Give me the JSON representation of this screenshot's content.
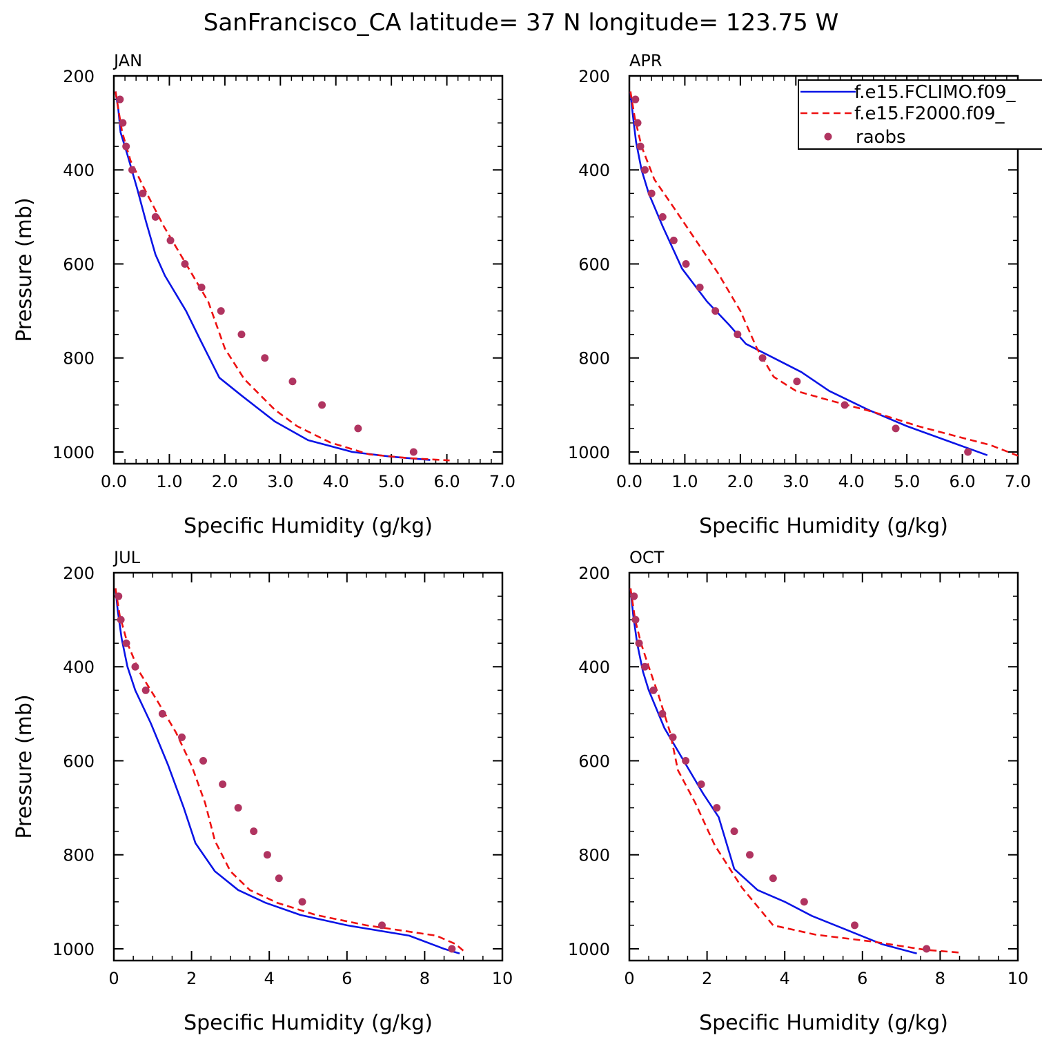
{
  "title": "SanFrancisco_CA  latitude= 37 N longitude= 123.75 W",
  "colors": {
    "fclimo": "#0a14e6",
    "f2000": "#ee1111",
    "raobs": "#b03460"
  },
  "legend": {
    "placement": "top-right of APR panel",
    "entries": [
      "f.e15.FCLIMO.f09_",
      "f.e15.F2000.f09_",
      "raobs"
    ]
  },
  "chart_data": [
    {
      "type": "line",
      "panel": "JAN",
      "xlabel": "Specific Humidity (g/kg)",
      "ylabel": "Pressure (mb)",
      "xlim": [
        0,
        7
      ],
      "ylim": [
        1025,
        200
      ],
      "y_inverted": true,
      "xticks": [
        "0.0",
        "1.0",
        "2.0",
        "3.0",
        "4.0",
        "5.0",
        "6.0",
        "7.0"
      ],
      "yticks": [
        "200",
        "400",
        "600",
        "800",
        "1000"
      ],
      "series": [
        {
          "name": "f.e15.FCLIMO.f09_",
          "style": "solid",
          "points": [
            [
              0.03,
              233
            ],
            [
              0.08,
              270
            ],
            [
              0.12,
              320
            ],
            [
              0.25,
              370
            ],
            [
              0.42,
              440
            ],
            [
              0.58,
              510
            ],
            [
              0.75,
              580
            ],
            [
              0.92,
              625
            ],
            [
              1.3,
              700
            ],
            [
              1.55,
              760
            ],
            [
              1.9,
              842
            ],
            [
              2.3,
              880
            ],
            [
              2.9,
              935
            ],
            [
              3.5,
              975
            ],
            [
              4.3,
              1000
            ],
            [
              5.0,
              1010
            ],
            [
              5.7,
              1017
            ]
          ]
        },
        {
          "name": "f.e15.F2000.f09_",
          "style": "dashed",
          "points": [
            [
              0.03,
              233
            ],
            [
              0.08,
              270
            ],
            [
              0.15,
              320
            ],
            [
              0.3,
              380
            ],
            [
              0.55,
              440
            ],
            [
              0.9,
              520
            ],
            [
              1.3,
              600
            ],
            [
              1.7,
              680
            ],
            [
              2.0,
              780
            ],
            [
              2.35,
              845
            ],
            [
              2.9,
              910
            ],
            [
              3.3,
              945
            ],
            [
              3.9,
              980
            ],
            [
              4.6,
              1005
            ],
            [
              5.3,
              1013
            ],
            [
              6.05,
              1018
            ]
          ]
        },
        {
          "name": "raobs",
          "style": "dots",
          "points": [
            [
              0.11,
              250
            ],
            [
              0.16,
              300
            ],
            [
              0.22,
              350
            ],
            [
              0.33,
              400
            ],
            [
              0.52,
              450
            ],
            [
              0.75,
              500
            ],
            [
              1.02,
              550
            ],
            [
              1.28,
              600
            ],
            [
              1.58,
              650
            ],
            [
              1.93,
              700
            ],
            [
              2.3,
              750
            ],
            [
              2.72,
              800
            ],
            [
              3.22,
              850
            ],
            [
              3.75,
              900
            ],
            [
              4.4,
              950
            ],
            [
              5.4,
              1000
            ]
          ]
        }
      ]
    },
    {
      "type": "line",
      "panel": "APR",
      "xlabel": "Specific Humidity (g/kg)",
      "ylabel": "",
      "xlim": [
        0,
        7
      ],
      "ylim": [
        1025,
        200
      ],
      "y_inverted": true,
      "xticks": [
        "0.0",
        "1.0",
        "2.0",
        "3.0",
        "4.0",
        "5.0",
        "6.0",
        "7.0"
      ],
      "yticks": [
        "200",
        "400",
        "600",
        "800",
        "1000"
      ],
      "series": [
        {
          "name": "f.e15.FCLIMO.f09_",
          "style": "solid",
          "points": [
            [
              0.02,
              233
            ],
            [
              0.06,
              280
            ],
            [
              0.12,
              340
            ],
            [
              0.22,
              400
            ],
            [
              0.35,
              450
            ],
            [
              0.6,
              520
            ],
            [
              0.95,
              610
            ],
            [
              1.4,
              680
            ],
            [
              1.8,
              730
            ],
            [
              2.1,
              770
            ],
            [
              2.6,
              800
            ],
            [
              3.1,
              830
            ],
            [
              3.6,
              870
            ],
            [
              4.3,
              910
            ],
            [
              5.0,
              945
            ],
            [
              5.7,
              975
            ],
            [
              6.45,
              1007
            ]
          ]
        },
        {
          "name": "f.e15.F2000.f09_",
          "style": "dashed",
          "points": [
            [
              0.02,
              233
            ],
            [
              0.1,
              290
            ],
            [
              0.22,
              350
            ],
            [
              0.45,
              420
            ],
            [
              0.8,
              480
            ],
            [
              1.2,
              550
            ],
            [
              1.6,
              620
            ],
            [
              2.0,
              700
            ],
            [
              2.3,
              780
            ],
            [
              2.6,
              840
            ],
            [
              3.0,
              870
            ],
            [
              3.6,
              890
            ],
            [
              4.4,
              915
            ],
            [
              5.2,
              945
            ],
            [
              6.0,
              970
            ],
            [
              6.5,
              985
            ],
            [
              7.0,
              1008
            ]
          ]
        },
        {
          "name": "raobs",
          "style": "dots",
          "points": [
            [
              0.11,
              250
            ],
            [
              0.15,
              300
            ],
            [
              0.2,
              350
            ],
            [
              0.28,
              400
            ],
            [
              0.4,
              450
            ],
            [
              0.6,
              500
            ],
            [
              0.8,
              550
            ],
            [
              1.02,
              600
            ],
            [
              1.27,
              650
            ],
            [
              1.55,
              700
            ],
            [
              1.95,
              750
            ],
            [
              2.4,
              800
            ],
            [
              3.02,
              850
            ],
            [
              3.88,
              900
            ],
            [
              4.8,
              950
            ],
            [
              6.1,
              1000
            ]
          ]
        }
      ]
    },
    {
      "type": "line",
      "panel": "JUL",
      "xlabel": "Specific Humidity (g/kg)",
      "ylabel": "Pressure (mb)",
      "xlim": [
        0,
        10
      ],
      "ylim": [
        1025,
        200
      ],
      "y_inverted": true,
      "xticks": [
        "0",
        "2",
        "4",
        "6",
        "8",
        "10"
      ],
      "yticks": [
        "200",
        "400",
        "600",
        "800",
        "1000"
      ],
      "series": [
        {
          "name": "f.e15.FCLIMO.f09_",
          "style": "solid",
          "points": [
            [
              0.04,
              233
            ],
            [
              0.1,
              280
            ],
            [
              0.2,
              340
            ],
            [
              0.35,
              400
            ],
            [
              0.55,
              450
            ],
            [
              0.95,
              520
            ],
            [
              1.4,
              610
            ],
            [
              1.8,
              700
            ],
            [
              2.1,
              775
            ],
            [
              2.6,
              835
            ],
            [
              3.2,
              875
            ],
            [
              3.9,
              902
            ],
            [
              4.8,
              928
            ],
            [
              6.0,
              950
            ],
            [
              7.6,
              972
            ],
            [
              8.5,
              1000
            ],
            [
              8.9,
              1010
            ]
          ]
        },
        {
          "name": "f.e15.F2000.f09_",
          "style": "dashed",
          "points": [
            [
              0.04,
              233
            ],
            [
              0.15,
              290
            ],
            [
              0.35,
              350
            ],
            [
              0.65,
              410
            ],
            [
              1.1,
              470
            ],
            [
              1.6,
              540
            ],
            [
              2.0,
              610
            ],
            [
              2.35,
              690
            ],
            [
              2.6,
              770
            ],
            [
              3.0,
              835
            ],
            [
              3.5,
              875
            ],
            [
              4.2,
              902
            ],
            [
              5.2,
              928
            ],
            [
              6.5,
              950
            ],
            [
              8.3,
              972
            ],
            [
              8.8,
              990
            ],
            [
              9.05,
              1008
            ]
          ]
        },
        {
          "name": "raobs",
          "style": "dots",
          "points": [
            [
              0.12,
              250
            ],
            [
              0.18,
              300
            ],
            [
              0.32,
              350
            ],
            [
              0.55,
              400
            ],
            [
              0.82,
              450
            ],
            [
              1.25,
              500
            ],
            [
              1.75,
              550
            ],
            [
              2.3,
              600
            ],
            [
              2.8,
              650
            ],
            [
              3.2,
              700
            ],
            [
              3.6,
              750
            ],
            [
              3.95,
              800
            ],
            [
              4.25,
              850
            ],
            [
              4.85,
              900
            ],
            [
              6.9,
              950
            ],
            [
              8.7,
              1000
            ]
          ]
        }
      ]
    },
    {
      "type": "line",
      "panel": "OCT",
      "xlabel": "Specific Humidity (g/kg)",
      "ylabel": "",
      "xlim": [
        0,
        10
      ],
      "ylim": [
        1025,
        200
      ],
      "y_inverted": true,
      "xticks": [
        "0",
        "2",
        "4",
        "6",
        "8",
        "10"
      ],
      "yticks": [
        "200",
        "400",
        "600",
        "800",
        "1000"
      ],
      "series": [
        {
          "name": "f.e15.FCLIMO.f09_",
          "style": "solid",
          "points": [
            [
              0.03,
              233
            ],
            [
              0.1,
              290
            ],
            [
              0.2,
              350
            ],
            [
              0.35,
              410
            ],
            [
              0.5,
              450
            ],
            [
              0.9,
              530
            ],
            [
              1.4,
              600
            ],
            [
              1.9,
              670
            ],
            [
              2.3,
              720
            ],
            [
              2.7,
              830
            ],
            [
              3.3,
              875
            ],
            [
              4.0,
              900
            ],
            [
              4.7,
              930
            ],
            [
              5.6,
              960
            ],
            [
              6.5,
              990
            ],
            [
              7.4,
              1010
            ]
          ]
        },
        {
          "name": "f.e15.F2000.f09_",
          "style": "dashed",
          "points": [
            [
              0.03,
              233
            ],
            [
              0.15,
              300
            ],
            [
              0.3,
              350
            ],
            [
              0.5,
              400
            ],
            [
              0.75,
              460
            ],
            [
              1.05,
              540
            ],
            [
              1.25,
              620
            ],
            [
              1.7,
              690
            ],
            [
              2.2,
              780
            ],
            [
              2.9,
              870
            ],
            [
              3.7,
              950
            ],
            [
              4.8,
              970
            ],
            [
              6.3,
              985
            ],
            [
              7.6,
              1002
            ],
            [
              8.5,
              1008
            ]
          ]
        },
        {
          "name": "raobs",
          "style": "dots",
          "points": [
            [
              0.12,
              250
            ],
            [
              0.16,
              300
            ],
            [
              0.25,
              350
            ],
            [
              0.4,
              400
            ],
            [
              0.62,
              450
            ],
            [
              0.85,
              500
            ],
            [
              1.12,
              550
            ],
            [
              1.45,
              600
            ],
            [
              1.85,
              650
            ],
            [
              2.25,
              700
            ],
            [
              2.7,
              750
            ],
            [
              3.1,
              800
            ],
            [
              3.7,
              850
            ],
            [
              4.5,
              900
            ],
            [
              5.8,
              950
            ],
            [
              7.65,
              1000
            ]
          ]
        }
      ]
    }
  ]
}
